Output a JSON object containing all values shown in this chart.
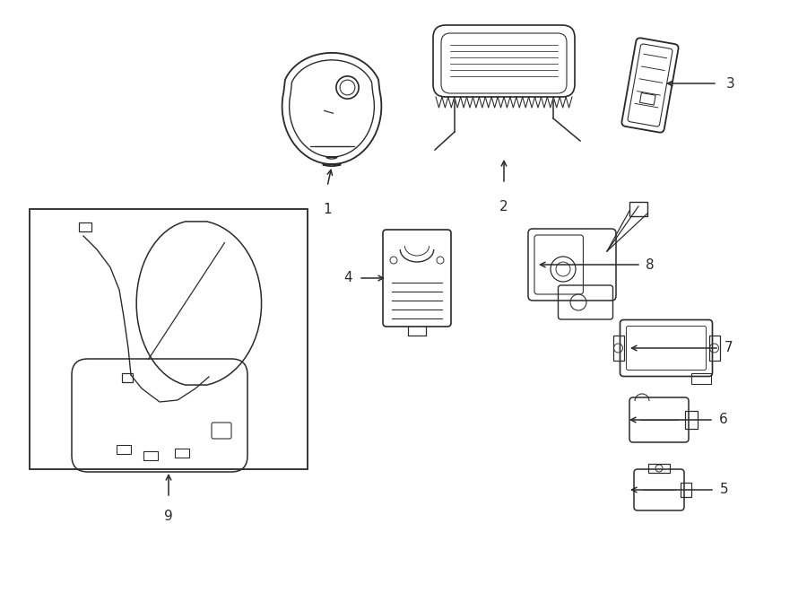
{
  "bg_color": "#ffffff",
  "line_color": "#2a2a2a",
  "fig_width": 9.0,
  "fig_height": 6.61,
  "dpi": 100,
  "lw": 1.1
}
